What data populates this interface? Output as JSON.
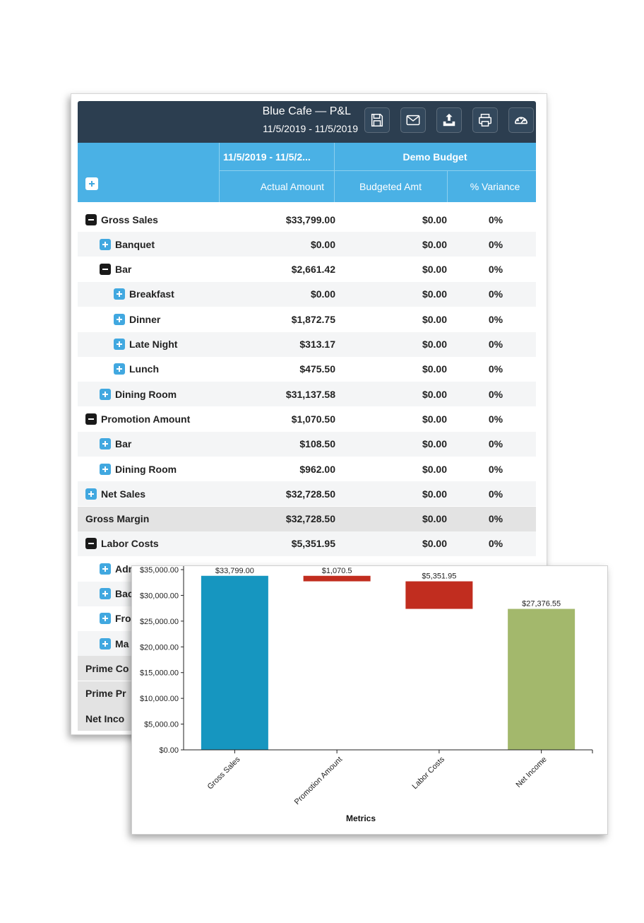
{
  "report": {
    "title": "Blue Cafe — P&L",
    "date_range": "11/5/2019 - 11/5/2019",
    "toolbar": [
      {
        "icon": "save-icon"
      },
      {
        "icon": "email-icon"
      },
      {
        "icon": "export-icon"
      },
      {
        "icon": "print-icon"
      },
      {
        "icon": "dashboard-icon"
      }
    ],
    "table": {
      "group_headers": {
        "actual_period": "11/5/2019 - 11/5/2...",
        "budget": "Demo Budget"
      },
      "columns": {
        "actual": "Actual Amount",
        "budgeted": "Budgeted Amt",
        "variance": "% Variance"
      },
      "rows": [
        {
          "label": "Gross Sales",
          "toggle": "minus",
          "level": 0,
          "actual": "$33,799.00",
          "budgeted": "$0.00",
          "variance": "0%",
          "style": "normal"
        },
        {
          "label": "Banquet",
          "toggle": "plus",
          "level": 1,
          "actual": "$0.00",
          "budgeted": "$0.00",
          "variance": "0%",
          "style": "alt"
        },
        {
          "label": "Bar",
          "toggle": "minus",
          "level": 1,
          "actual": "$2,661.42",
          "budgeted": "$0.00",
          "variance": "0%",
          "style": "normal"
        },
        {
          "label": "Breakfast",
          "toggle": "plus",
          "level": 2,
          "actual": "$0.00",
          "budgeted": "$0.00",
          "variance": "0%",
          "style": "alt"
        },
        {
          "label": "Dinner",
          "toggle": "plus",
          "level": 2,
          "actual": "$1,872.75",
          "budgeted": "$0.00",
          "variance": "0%",
          "style": "normal"
        },
        {
          "label": "Late Night",
          "toggle": "plus",
          "level": 2,
          "actual": "$313.17",
          "budgeted": "$0.00",
          "variance": "0%",
          "style": "alt"
        },
        {
          "label": "Lunch",
          "toggle": "plus",
          "level": 2,
          "actual": "$475.50",
          "budgeted": "$0.00",
          "variance": "0%",
          "style": "normal"
        },
        {
          "label": "Dining Room",
          "toggle": "plus",
          "level": 1,
          "actual": "$31,137.58",
          "budgeted": "$0.00",
          "variance": "0%",
          "style": "alt"
        },
        {
          "label": "Promotion Amount",
          "toggle": "minus",
          "level": 0,
          "actual": "$1,070.50",
          "budgeted": "$0.00",
          "variance": "0%",
          "style": "normal"
        },
        {
          "label": "Bar",
          "toggle": "plus",
          "level": 1,
          "actual": "$108.50",
          "budgeted": "$0.00",
          "variance": "0%",
          "style": "alt"
        },
        {
          "label": "Dining Room",
          "toggle": "plus",
          "level": 1,
          "actual": "$962.00",
          "budgeted": "$0.00",
          "variance": "0%",
          "style": "normal"
        },
        {
          "label": "Net Sales",
          "toggle": "plus",
          "level": 0,
          "actual": "$32,728.50",
          "budgeted": "$0.00",
          "variance": "0%",
          "style": "alt"
        },
        {
          "label": "Gross Margin",
          "toggle": "none",
          "level": 0,
          "actual": "$32,728.50",
          "budgeted": "$0.00",
          "variance": "0%",
          "style": "total"
        },
        {
          "label": "Labor Costs",
          "toggle": "minus",
          "level": 0,
          "actual": "$5,351.95",
          "budgeted": "$0.00",
          "variance": "0%",
          "style": "alt"
        },
        {
          "label": "Admi",
          "toggle": "plus",
          "level": 1,
          "actual": "",
          "budgeted": "",
          "variance": "",
          "style": "normal"
        },
        {
          "label": "Bac",
          "toggle": "plus",
          "level": 1,
          "actual": "",
          "budgeted": "",
          "variance": "",
          "style": "alt"
        },
        {
          "label": "Fro",
          "toggle": "plus",
          "level": 1,
          "actual": "",
          "budgeted": "",
          "variance": "",
          "style": "normal"
        },
        {
          "label": "Ma",
          "toggle": "plus",
          "level": 1,
          "actual": "",
          "budgeted": "",
          "variance": "",
          "style": "alt"
        },
        {
          "label": "Prime Co",
          "toggle": "none",
          "level": 0,
          "actual": "",
          "budgeted": "",
          "variance": "",
          "style": "total"
        },
        {
          "label": "Prime Pr",
          "toggle": "none",
          "level": 0,
          "actual": "",
          "budgeted": "",
          "variance": "",
          "style": "total"
        },
        {
          "label": "Net Inco",
          "toggle": "none",
          "level": 0,
          "actual": "",
          "budgeted": "",
          "variance": "",
          "style": "total"
        }
      ]
    }
  },
  "chart_data": {
    "type": "bar",
    "subtype": "waterfall",
    "categories": [
      "Gross Sales",
      "Promotion Amount",
      "Labor Costs",
      "Net Income"
    ],
    "bars": [
      {
        "category": "Gross Sales",
        "start": 0,
        "end": 33799.0,
        "label": "$33,799.00",
        "color": "#1696c0"
      },
      {
        "category": "Promotion Amount",
        "start": 33799.0,
        "end": 32728.5,
        "label": "$1,070.5",
        "color": "#c12d1f"
      },
      {
        "category": "Labor Costs",
        "start": 32728.5,
        "end": 27376.55,
        "label": "$5,351.95",
        "color": "#c12d1f"
      },
      {
        "category": "Net Income",
        "start": 0,
        "end": 27376.55,
        "label": "$27,376.55",
        "color": "#a3b86c"
      }
    ],
    "yticks": [
      0,
      5000,
      10000,
      15000,
      20000,
      25000,
      30000,
      35000
    ],
    "ytick_labels": [
      "$0.00",
      "$5,000.00",
      "$10,000.00",
      "$15,000.00",
      "$20,000.00",
      "$25,000.00",
      "$30,000.00",
      "$35,000.00"
    ],
    "ylim": [
      0,
      35000
    ],
    "xlabel": "Metrics",
    "ylabel": "",
    "title": "",
    "grid": false
  },
  "colors": {
    "header_bg": "#2c3e50",
    "table_head_bg": "#4ab1e5",
    "toggle_plus": "#41a8e0",
    "toggle_minus": "#1a1a1a",
    "row_alt": "#f4f5f6",
    "row_total": "#e3e3e3"
  }
}
